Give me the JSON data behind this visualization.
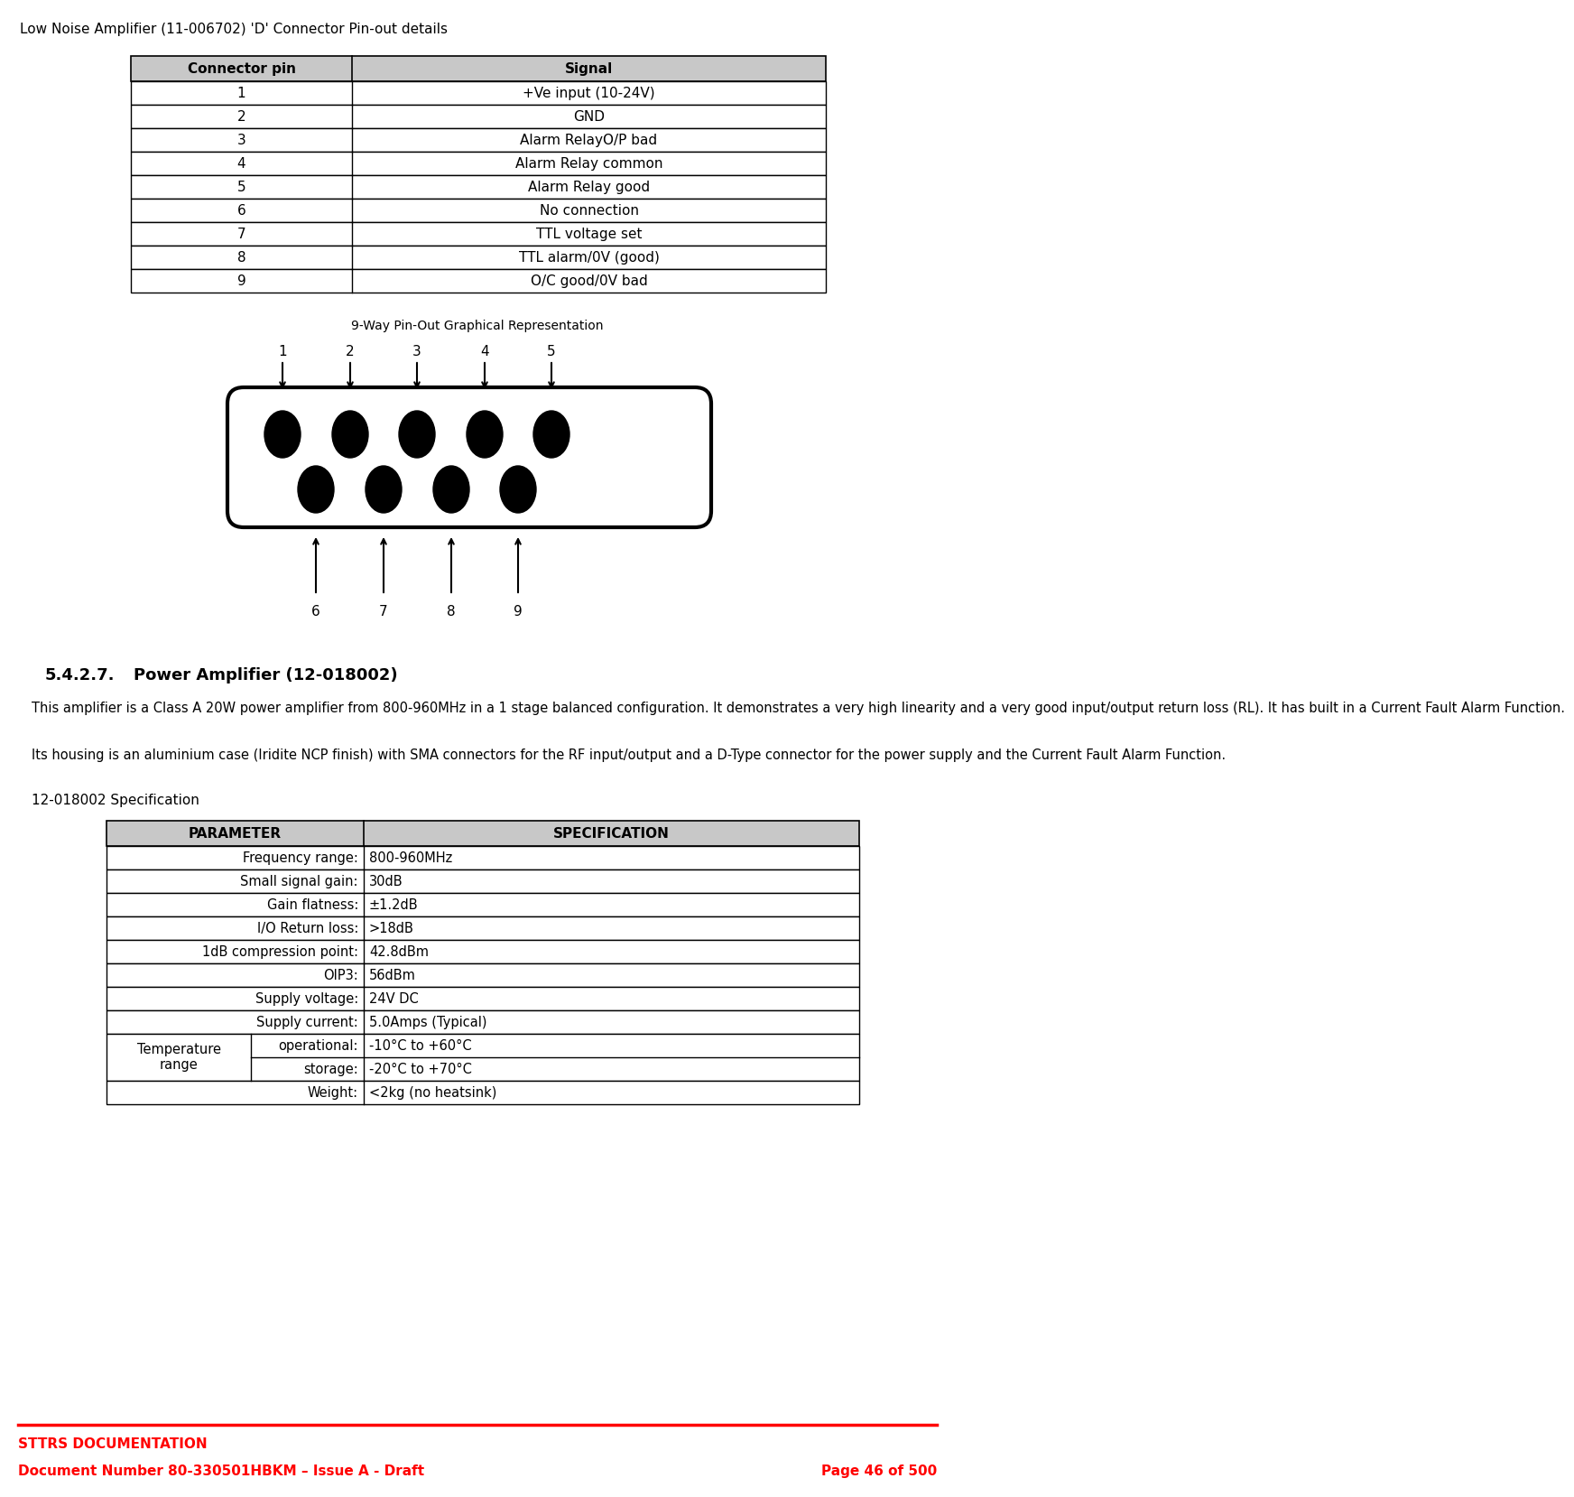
{
  "page_title": "Low Noise Amplifier (11-006702) 'D' Connector Pin-out details",
  "table1_headers": [
    "Connector pin",
    "Signal"
  ],
  "table1_rows": [
    [
      "1",
      "+Ve input (10-24V)"
    ],
    [
      "2",
      "GND"
    ],
    [
      "3",
      "Alarm RelayO/P bad"
    ],
    [
      "4",
      "Alarm Relay common"
    ],
    [
      "5",
      "Alarm Relay good"
    ],
    [
      "6",
      "No connection"
    ],
    [
      "7",
      "TTL voltage set"
    ],
    [
      "8",
      "TTL alarm/0V (good)"
    ],
    [
      "9",
      "O/C good/0V bad"
    ]
  ],
  "diagram_title": "9-Way Pin-Out Graphical Representation",
  "top_pins": [
    "1",
    "2",
    "3",
    "4",
    "5"
  ],
  "bottom_pins": [
    "6",
    "7",
    "8",
    "9"
  ],
  "section_heading": "5.4.2.7.",
  "section_title": "Power Amplifier (12-018002)",
  "body_text_1": "This amplifier is a Class A 20W power amplifier from 800-960MHz in a 1 stage balanced configuration. It demonstrates a very high linearity and a very good input/output return loss (RL). It has built in a Current Fault Alarm Function.",
  "body_text_2": "Its housing is an aluminium case (Iridite NCP finish) with SMA connectors for the RF input/output and a D-Type connector for the power supply and the Current Fault Alarm Function.",
  "spec_label": "12-018002 Specification",
  "table2_headers": [
    "PARAMETER",
    "SPECIFICATION"
  ],
  "table2_rows_simple": [
    [
      "Frequency range:",
      "800-960MHz"
    ],
    [
      "Small signal gain:",
      "30dB"
    ],
    [
      "Gain flatness:",
      "±1.2dB"
    ],
    [
      "I/O Return loss:",
      ">18dB"
    ],
    [
      "1dB compression point:",
      "42.8dBm"
    ],
    [
      "OIP3:",
      "56dBm"
    ],
    [
      "Supply voltage:",
      "24V DC"
    ],
    [
      "Supply current:",
      "5.0Amps (Typical)"
    ]
  ],
  "temp_row1": [
    "Temperature\nrange",
    "operational:",
    "-10°C to +60°C"
  ],
  "temp_row2": [
    "",
    "storage:",
    "-20°C to +70°C"
  ],
  "table2_row_last": [
    "Weight:",
    "<2kg (no heatsink)"
  ],
  "footer_line_color": "#FF0000",
  "footer_text1": "STTRS DOCUMENTATION",
  "footer_text2": "Document Number 80-330501HBKM – Issue A - Draft",
  "footer_text3": "Page 46 of 500",
  "footer_color": "#FF0000",
  "header_bg": "#C8C8C8",
  "table_border": "#000000",
  "bg_color": "#FFFFFF",
  "text_color": "#000000"
}
